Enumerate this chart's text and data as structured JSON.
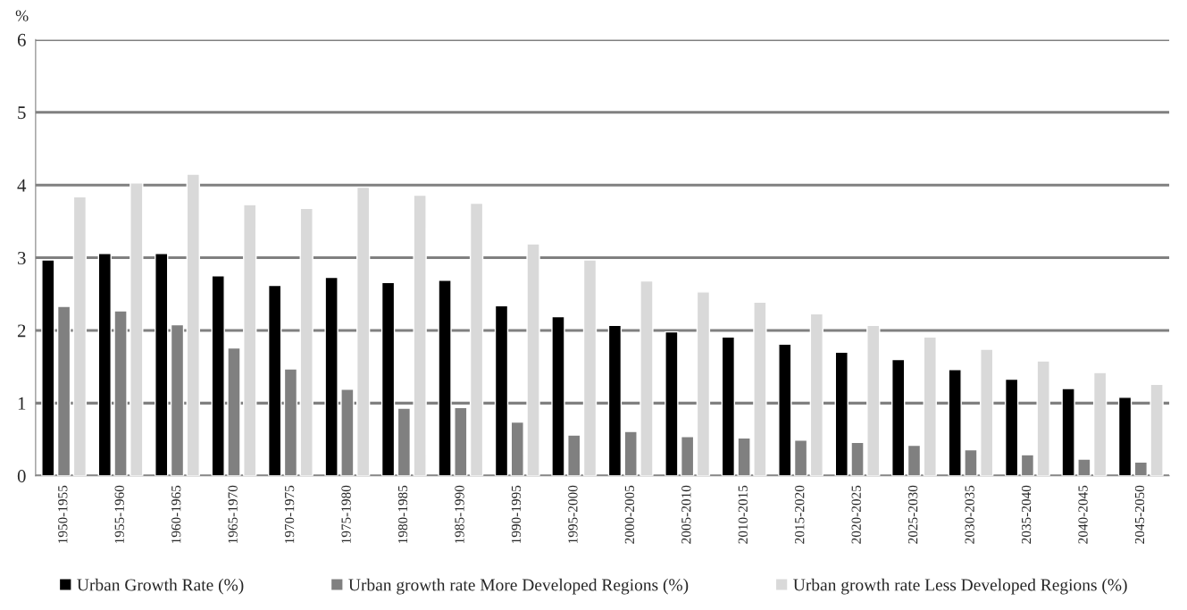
{
  "chart_data": {
    "type": "bar",
    "ylabel": "%",
    "categories": [
      "1950-1955",
      "1955-1960",
      "1960-1965",
      "1965-1970",
      "1970-1975",
      "1975-1980",
      "1980-1985",
      "1985-1990",
      "1990-1995",
      "1995-2000",
      "2000-2005",
      "2005-2010",
      "2010-2015",
      "2015-2020",
      "2020-2025",
      "2025-2030",
      "2030-2035",
      "2035-2040",
      "2040-2045",
      "2045-2050"
    ],
    "series": [
      {
        "name": "Urban Growth Rate (%)",
        "color": "#000000",
        "values": [
          2.97,
          3.06,
          3.06,
          2.75,
          2.62,
          2.73,
          2.66,
          2.69,
          2.34,
          2.19,
          2.07,
          1.98,
          1.91,
          1.81,
          1.7,
          1.6,
          1.46,
          1.33,
          1.2,
          1.08
        ]
      },
      {
        "name": "Urban growth rate More Developed Regions (%)",
        "color": "#808080",
        "values": [
          2.33,
          2.27,
          2.08,
          1.76,
          1.47,
          1.19,
          0.93,
          0.94,
          0.74,
          0.56,
          0.61,
          0.54,
          0.52,
          0.49,
          0.46,
          0.42,
          0.36,
          0.29,
          0.23,
          0.19
        ]
      },
      {
        "name": "Urban growth rate Less Developed Regions (%)",
        "color": "#d9d9d9",
        "values": [
          3.84,
          4.03,
          4.15,
          3.73,
          3.68,
          3.97,
          3.86,
          3.75,
          3.19,
          2.97,
          2.68,
          2.53,
          2.39,
          2.23,
          2.07,
          1.91,
          1.74,
          1.58,
          1.42,
          1.26
        ]
      }
    ],
    "ylim": [
      0,
      6
    ],
    "yticks": [
      0,
      1,
      2,
      3,
      4,
      5,
      6
    ],
    "grid": "y",
    "legend": "bottom"
  }
}
